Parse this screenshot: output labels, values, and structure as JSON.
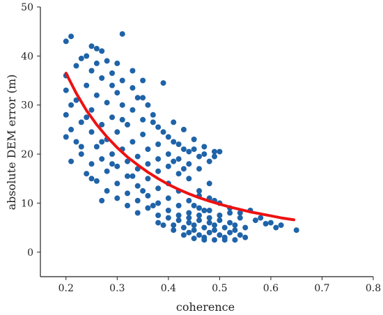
{
  "chart_data": {
    "type": "scatter",
    "title": "",
    "xlabel": "coherence",
    "ylabel": "absolute DEM error (m)",
    "xlim": [
      0.15,
      0.8
    ],
    "ylim": [
      -5,
      50
    ],
    "xticks": [
      0.2,
      0.3,
      0.4,
      0.5,
      0.6,
      0.7,
      0.8
    ],
    "yticks": [
      0,
      10,
      20,
      30,
      40,
      50
    ],
    "xtick_labels": [
      "0.2",
      "0.3",
      "0.4",
      "0.5",
      "0.6",
      "0.7",
      "0.8"
    ],
    "ytick_labels": [
      "0",
      "10",
      "20",
      "30",
      "40",
      "50"
    ],
    "grid": false,
    "legend": "none",
    "colors": {
      "points": "#1f63a8",
      "fit": "#ee1111",
      "axis": "#222222"
    },
    "series": [
      {
        "type": "scatter",
        "points": [
          [
            0.2,
            43.0
          ],
          [
            0.21,
            44.0
          ],
          [
            0.31,
            44.5
          ],
          [
            0.25,
            42.0
          ],
          [
            0.26,
            41.5
          ],
          [
            0.27,
            41.0
          ],
          [
            0.24,
            40.0
          ],
          [
            0.28,
            39.0
          ],
          [
            0.3,
            38.5
          ],
          [
            0.22,
            38.0
          ],
          [
            0.25,
            37.0
          ],
          [
            0.33,
            37.0
          ],
          [
            0.29,
            36.5
          ],
          [
            0.2,
            36.0
          ],
          [
            0.27,
            35.5
          ],
          [
            0.35,
            35.0
          ],
          [
            0.31,
            35.0
          ],
          [
            0.39,
            34.5
          ],
          [
            0.24,
            34.0
          ],
          [
            0.2,
            33.0
          ],
          [
            0.3,
            32.5
          ],
          [
            0.26,
            32.0
          ],
          [
            0.34,
            31.5
          ],
          [
            0.22,
            31.0
          ],
          [
            0.28,
            30.5
          ],
          [
            0.31,
            30.0
          ],
          [
            0.36,
            30.0
          ],
          [
            0.25,
            29.0
          ],
          [
            0.33,
            29.0
          ],
          [
            0.2,
            28.0
          ],
          [
            0.37,
            28.0
          ],
          [
            0.29,
            27.5
          ],
          [
            0.35,
            27.0
          ],
          [
            0.23,
            26.5
          ],
          [
            0.41,
            26.5
          ],
          [
            0.27,
            26.0
          ],
          [
            0.32,
            26.0
          ],
          [
            0.38,
            25.5
          ],
          [
            0.21,
            25.0
          ],
          [
            0.43,
            25.0
          ],
          [
            0.25,
            24.5
          ],
          [
            0.3,
            24.5
          ],
          [
            0.35,
            24.0
          ],
          [
            0.2,
            23.5
          ],
          [
            0.4,
            23.5
          ],
          [
            0.28,
            23.0
          ],
          [
            0.45,
            23.0
          ],
          [
            0.22,
            22.5
          ],
          [
            0.33,
            22.5
          ],
          [
            0.38,
            22.0
          ],
          [
            0.42,
            22.0
          ],
          [
            0.26,
            21.5
          ],
          [
            0.47,
            21.5
          ],
          [
            0.31,
            21.0
          ],
          [
            0.36,
            21.0
          ],
          [
            0.44,
            20.5
          ],
          [
            0.49,
            20.5
          ],
          [
            0.23,
            20.0
          ],
          [
            0.29,
            20.0
          ],
          [
            0.4,
            20.0
          ],
          [
            0.34,
            19.5
          ],
          [
            0.46,
            19.5
          ],
          [
            0.27,
            19.0
          ],
          [
            0.38,
            19.0
          ],
          [
            0.42,
            19.0
          ],
          [
            0.21,
            18.5
          ],
          [
            0.32,
            18.5
          ],
          [
            0.48,
            18.5
          ],
          [
            0.25,
            18.0
          ],
          [
            0.36,
            18.0
          ],
          [
            0.44,
            18.0
          ],
          [
            0.3,
            17.5
          ],
          [
            0.4,
            17.5
          ],
          [
            0.34,
            17.0
          ],
          [
            0.46,
            17.0
          ],
          [
            0.28,
            16.5
          ],
          [
            0.38,
            16.5
          ],
          [
            0.24,
            16.0
          ],
          [
            0.42,
            16.0
          ],
          [
            0.32,
            15.5
          ],
          [
            0.36,
            15.0
          ],
          [
            0.44,
            15.0
          ],
          [
            0.26,
            14.5
          ],
          [
            0.3,
            14.0
          ],
          [
            0.4,
            14.0
          ],
          [
            0.48,
            14.0
          ],
          [
            0.34,
            13.5
          ],
          [
            0.38,
            13.0
          ],
          [
            0.28,
            12.5
          ],
          [
            0.42,
            12.5
          ],
          [
            0.32,
            12.0
          ],
          [
            0.36,
            11.5
          ],
          [
            0.46,
            11.5
          ],
          [
            0.3,
            11.0
          ],
          [
            0.4,
            11.0
          ],
          [
            0.27,
            10.5
          ],
          [
            0.34,
            10.5
          ],
          [
            0.44,
            10.5
          ],
          [
            0.38,
            10.0
          ],
          [
            0.5,
            10.0
          ],
          [
            0.32,
            9.5
          ],
          [
            0.42,
            9.5
          ],
          [
            0.36,
            9.0
          ],
          [
            0.46,
            9.0
          ],
          [
            0.4,
            8.5
          ],
          [
            0.48,
            8.5
          ],
          [
            0.34,
            8.0
          ],
          [
            0.44,
            8.0
          ],
          [
            0.52,
            8.0
          ],
          [
            0.38,
            7.5
          ],
          [
            0.42,
            7.5
          ],
          [
            0.46,
            7.5
          ],
          [
            0.5,
            7.5
          ],
          [
            0.4,
            7.0
          ],
          [
            0.44,
            7.0
          ],
          [
            0.48,
            7.0
          ],
          [
            0.54,
            7.0
          ],
          [
            0.42,
            6.5
          ],
          [
            0.46,
            6.5
          ],
          [
            0.5,
            6.5
          ],
          [
            0.38,
            6.0
          ],
          [
            0.44,
            6.0
          ],
          [
            0.48,
            6.0
          ],
          [
            0.52,
            6.0
          ],
          [
            0.41,
            5.5
          ],
          [
            0.45,
            5.5
          ],
          [
            0.49,
            5.5
          ],
          [
            0.53,
            5.5
          ],
          [
            0.43,
            5.0
          ],
          [
            0.47,
            5.0
          ],
          [
            0.51,
            5.0
          ],
          [
            0.55,
            5.0
          ],
          [
            0.45,
            4.5
          ],
          [
            0.49,
            4.5
          ],
          [
            0.53,
            4.5
          ],
          [
            0.44,
            4.0
          ],
          [
            0.48,
            4.0
          ],
          [
            0.52,
            4.0
          ],
          [
            0.46,
            3.5
          ],
          [
            0.5,
            3.5
          ],
          [
            0.54,
            3.5
          ],
          [
            0.47,
            3.0
          ],
          [
            0.51,
            3.0
          ],
          [
            0.49,
            2.5
          ],
          [
            0.53,
            2.5
          ],
          [
            0.56,
            8.5
          ],
          [
            0.6,
            6.0
          ],
          [
            0.62,
            5.5
          ],
          [
            0.65,
            4.5
          ],
          [
            0.58,
            7.0
          ],
          [
            0.61,
            5.0
          ],
          [
            0.57,
            6.5
          ],
          [
            0.59,
            5.8
          ],
          [
            0.47,
            8.5
          ],
          [
            0.45,
            9.5
          ],
          [
            0.49,
            10.5
          ],
          [
            0.41,
            18.5
          ],
          [
            0.43,
            17.0
          ],
          [
            0.45,
            21.0
          ],
          [
            0.47,
            20.0
          ],
          [
            0.49,
            19.5
          ],
          [
            0.5,
            20.5
          ],
          [
            0.23,
            39.5
          ],
          [
            0.26,
            38.5
          ],
          [
            0.29,
            34.0
          ],
          [
            0.21,
            30.0
          ],
          [
            0.24,
            27.5
          ],
          [
            0.33,
            33.5
          ],
          [
            0.35,
            31.5
          ],
          [
            0.37,
            26.5
          ],
          [
            0.39,
            24.5
          ],
          [
            0.41,
            22.5
          ],
          [
            0.43,
            21.0
          ],
          [
            0.31,
            27.0
          ],
          [
            0.27,
            22.5
          ],
          [
            0.23,
            21.5
          ],
          [
            0.29,
            18.0
          ],
          [
            0.25,
            15.0
          ],
          [
            0.33,
            15.5
          ],
          [
            0.35,
            12.5
          ],
          [
            0.37,
            9.5
          ],
          [
            0.39,
            5.5
          ],
          [
            0.41,
            4.5
          ],
          [
            0.43,
            3.5
          ],
          [
            0.45,
            2.8
          ],
          [
            0.47,
            2.5
          ],
          [
            0.51,
            2.5
          ],
          [
            0.55,
            3.0
          ],
          [
            0.52,
            9.0
          ],
          [
            0.54,
            8.0
          ],
          [
            0.48,
            11.0
          ],
          [
            0.46,
            12.5
          ]
        ]
      },
      {
        "type": "line",
        "points": [
          [
            0.2,
            36.5
          ],
          [
            0.22,
            32.4
          ],
          [
            0.24,
            28.9
          ],
          [
            0.26,
            26.0
          ],
          [
            0.28,
            23.5
          ],
          [
            0.3,
            21.3
          ],
          [
            0.32,
            19.4
          ],
          [
            0.34,
            17.8
          ],
          [
            0.36,
            16.3
          ],
          [
            0.38,
            15.0
          ],
          [
            0.4,
            13.8
          ],
          [
            0.42,
            12.8
          ],
          [
            0.44,
            11.9
          ],
          [
            0.46,
            11.1
          ],
          [
            0.48,
            10.4
          ],
          [
            0.5,
            9.8
          ],
          [
            0.52,
            9.2
          ],
          [
            0.54,
            8.7
          ],
          [
            0.56,
            8.2
          ],
          [
            0.58,
            7.8
          ],
          [
            0.6,
            7.4
          ],
          [
            0.62,
            7.0
          ],
          [
            0.645,
            6.6
          ]
        ]
      }
    ]
  }
}
